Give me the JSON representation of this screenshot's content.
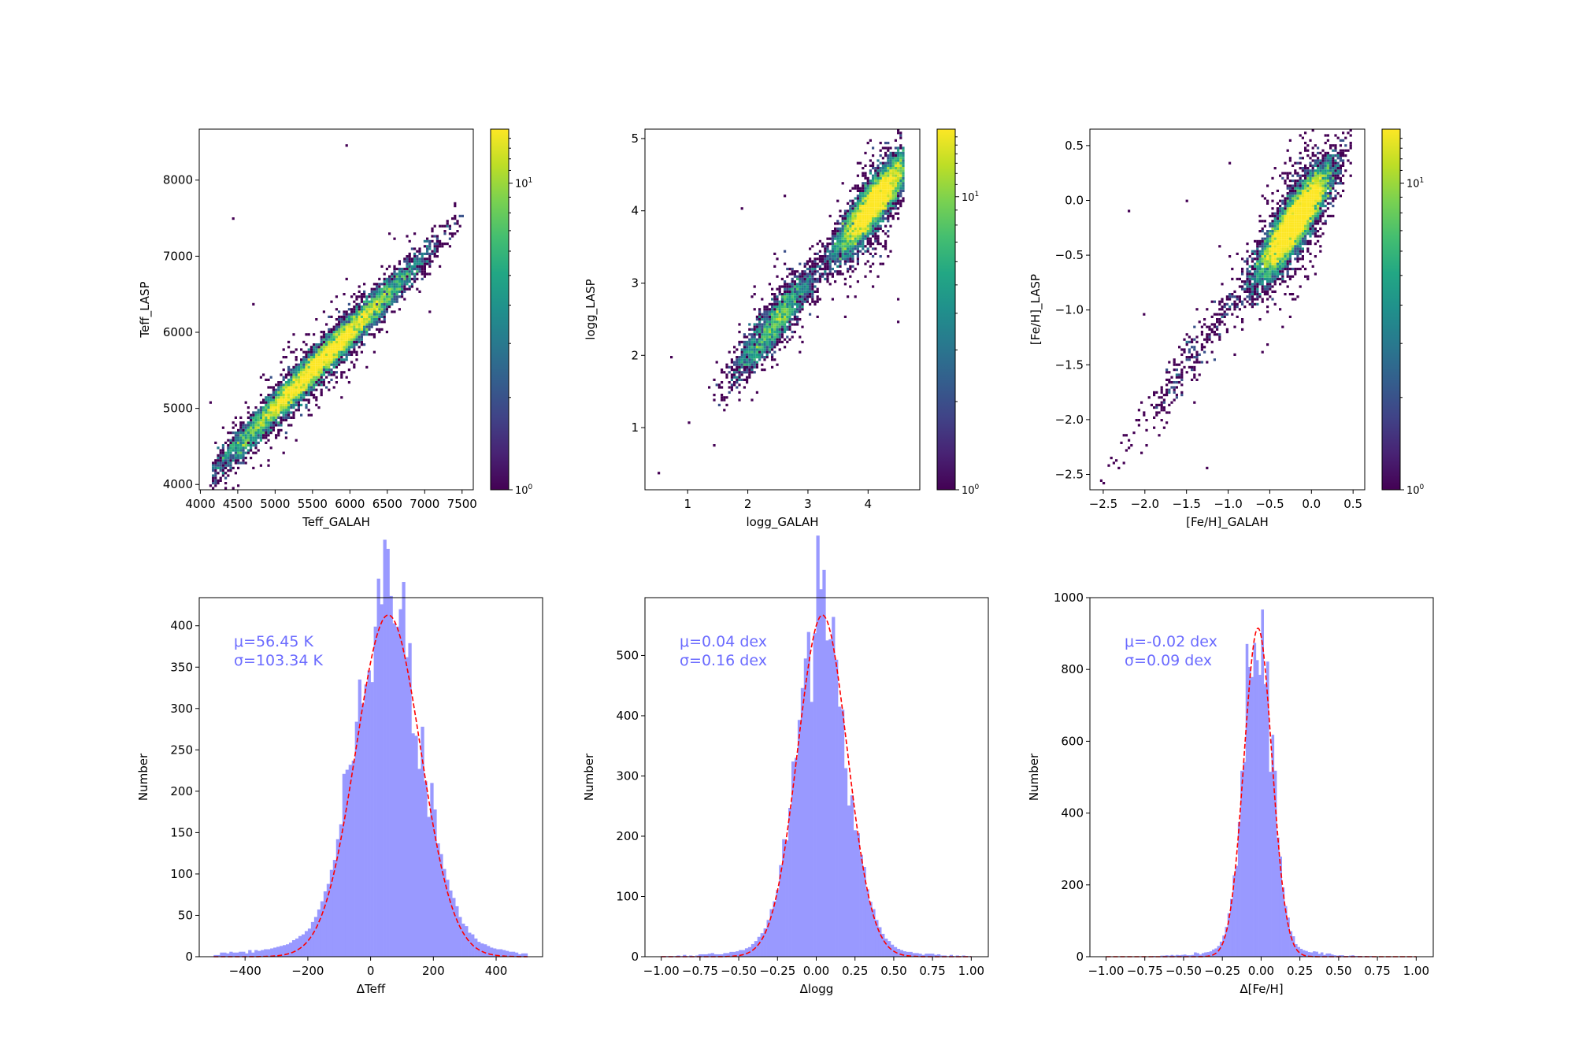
{
  "chart_data": [
    {
      "type": "heatmap",
      "subtype": "hexbin-density-scatter",
      "xlabel": "Teff_GALAH",
      "ylabel": "Teff_LASP",
      "xlim": [
        3985,
        7650
      ],
      "ylim": [
        3930,
        8670
      ],
      "xticks": [
        4000,
        4500,
        5000,
        5500,
        6000,
        6500,
        7000,
        7500
      ],
      "yticks": [
        4000,
        5000,
        6000,
        7000,
        8000
      ],
      "colorbar": {
        "scale": "log",
        "range": [
          1,
          15
        ],
        "tick_labels": [
          {
            "base": "10",
            "exp": "0",
            "value": 1
          },
          {
            "base": "10",
            "exp": "1",
            "value": 10
          }
        ],
        "colormap": "viridis"
      },
      "model": {
        "n_points": 9000,
        "groups": [
          {
            "weight": 1.0,
            "mean": 5600,
            "sd": 650,
            "min": 4150,
            "max": 7500
          }
        ],
        "offset": 0,
        "scatter": 110,
        "outliers": [
          [
            4450,
            7480
          ],
          [
            5950,
            8450
          ],
          [
            4150,
            5070
          ],
          [
            4700,
            6380
          ]
        ]
      }
    },
    {
      "type": "heatmap",
      "subtype": "hexbin-density-scatter",
      "xlabel": "logg_GALAH",
      "ylabel": "logg_LASP",
      "xlim": [
        0.29,
        4.86
      ],
      "ylim": [
        0.14,
        5.13
      ],
      "xticks": [
        1,
        2,
        3,
        4
      ],
      "yticks": [
        1,
        2,
        3,
        4,
        5
      ],
      "colorbar": {
        "scale": "log",
        "range": [
          1,
          17
        ],
        "tick_labels": [
          {
            "base": "10",
            "exp": "0",
            "value": 1
          },
          {
            "base": "10",
            "exp": "1",
            "value": 10
          }
        ],
        "colormap": "viridis"
      },
      "model": {
        "n_points": 9000,
        "groups": [
          {
            "weight": 0.25,
            "mean": 2.45,
            "sd": 0.35,
            "min": 0.5,
            "max": 3.4
          },
          {
            "weight": 0.75,
            "mean": 4.1,
            "sd": 0.32,
            "min": 3.0,
            "max": 4.6
          }
        ],
        "offset": 0.0,
        "scatter": 0.16,
        "outliers": [
          [
            0.5,
            0.38
          ],
          [
            0.75,
            1.98
          ],
          [
            1.9,
            4.02
          ],
          [
            2.6,
            4.22
          ],
          [
            4.5,
            2.45
          ],
          [
            4.5,
            2.78
          ]
        ]
      }
    },
    {
      "type": "heatmap",
      "subtype": "hexbin-density-scatter",
      "xlabel": "[Fe/H]_GALAH",
      "ylabel": "[Fe/H]_LASP",
      "xlim": [
        -2.66,
        0.64
      ],
      "ylim": [
        -2.64,
        0.65
      ],
      "xticks": [
        -2.5,
        -2.0,
        -1.5,
        -1.0,
        -0.5,
        0.0,
        0.5
      ],
      "xtick_labels": [
        "−2.5",
        "−2.0",
        "−1.5",
        "−1.0",
        "−0.5",
        "0.0",
        "0.5"
      ],
      "yticks": [
        -2.5,
        -2.0,
        -1.5,
        -1.0,
        -0.5,
        0.0,
        0.5
      ],
      "ytick_labels": [
        "−2.5",
        "−2.0",
        "−1.5",
        "−1.0",
        "−0.5",
        "0.0",
        "0.5"
      ],
      "colorbar": {
        "scale": "log",
        "range": [
          1,
          15
        ],
        "tick_labels": [
          {
            "base": "10",
            "exp": "0",
            "value": 1
          },
          {
            "base": "10",
            "exp": "1",
            "value": 10
          }
        ],
        "colormap": "viridis"
      },
      "model": {
        "n_points": 9000,
        "groups": [
          {
            "weight": 0.96,
            "mean": -0.2,
            "sd": 0.22,
            "min": -0.85,
            "max": 0.48
          },
          {
            "weight": 0.04,
            "mean": -1.3,
            "sd": 0.45,
            "min": -2.55,
            "max": -0.6
          }
        ],
        "offset": 0.0,
        "scatter": 0.12,
        "outliers": [
          [
            -2.2,
            -0.1
          ],
          [
            -1.5,
            0.0
          ],
          [
            -0.97,
            0.33
          ],
          [
            -2.02,
            -1.05
          ],
          [
            -1.24,
            -2.45
          ]
        ]
      }
    },
    {
      "type": "bar",
      "subtype": "histogram-with-gaussian-fit",
      "xlabel": "ΔTeff",
      "ylabel": "Number",
      "xlim": [
        -546,
        548
      ],
      "ylim": [
        0,
        434
      ],
      "xticks": [
        -400,
        -200,
        0,
        200,
        400
      ],
      "xtick_labels": [
        "−400",
        "−200",
        "0",
        "200",
        "400"
      ],
      "yticks": [
        0,
        50,
        100,
        150,
        200,
        250,
        300,
        350,
        400
      ],
      "bins": {
        "min": -500,
        "max": 500,
        "count": 100
      },
      "fit": {
        "mu": 56.45,
        "sigma": 103.34,
        "peak": 413
      },
      "tail": {
        "fraction": 0.06,
        "sigma_scale": 2.4
      },
      "annotation": {
        "mu_text": "μ=56.45 K",
        "sigma_text": "σ=103.34 K"
      },
      "colors": {
        "bars": "#9999ff",
        "fit": "#ff0000",
        "annotation": "#6b6bff"
      }
    },
    {
      "type": "bar",
      "subtype": "histogram-with-gaussian-fit",
      "xlabel": "Δlogg",
      "ylabel": "Number",
      "xlim": [
        -1.105,
        1.11
      ],
      "ylim": [
        0,
        596
      ],
      "xticks": [
        -1.0,
        -0.75,
        -0.5,
        -0.25,
        0.0,
        0.25,
        0.5,
        0.75,
        1.0
      ],
      "xtick_labels": [
        "−1.00",
        "−0.75",
        "−0.50",
        "−0.25",
        "0.00",
        "0.25",
        "0.50",
        "0.75",
        "1.00"
      ],
      "yticks": [
        0,
        100,
        200,
        300,
        400,
        500
      ],
      "bins": {
        "min": -1,
        "max": 1,
        "count": 100
      },
      "fit": {
        "mu": 0.04,
        "sigma": 0.16,
        "peak": 567
      },
      "tail": {
        "fraction": 0.03,
        "sigma_scale": 2.6
      },
      "annotation": {
        "mu_text": "μ=0.04 dex",
        "sigma_text": "σ=0.16 dex"
      },
      "colors": {
        "bars": "#9999ff",
        "fit": "#ff0000",
        "annotation": "#6b6bff"
      }
    },
    {
      "type": "bar",
      "subtype": "histogram-with-gaussian-fit",
      "xlabel": "Δ[Fe/H]",
      "ylabel": "Number",
      "xlim": [
        -1.104,
        1.11
      ],
      "ylim": [
        0,
        1000
      ],
      "xticks": [
        -1.0,
        -0.75,
        -0.5,
        -0.25,
        0.0,
        0.25,
        0.5,
        0.75,
        1.0
      ],
      "xtick_labels": [
        "−1.00",
        "−0.75",
        "−0.50",
        "−0.25",
        "0.00",
        "0.25",
        "0.50",
        "0.75",
        "1.00"
      ],
      "yticks": [
        0,
        200,
        400,
        600,
        800,
        1000
      ],
      "bins": {
        "min": -1,
        "max": 1,
        "count": 120
      },
      "fit": {
        "mu": -0.02,
        "sigma": 0.09,
        "peak": 915
      },
      "tail": {
        "fraction": 0.025,
        "sigma_scale": 3.2
      },
      "annotation": {
        "mu_text": "μ=-0.02 dex",
        "sigma_text": "σ=0.09 dex"
      },
      "colors": {
        "bars": "#9999ff",
        "fit": "#ff0000",
        "annotation": "#6b6bff"
      }
    }
  ]
}
